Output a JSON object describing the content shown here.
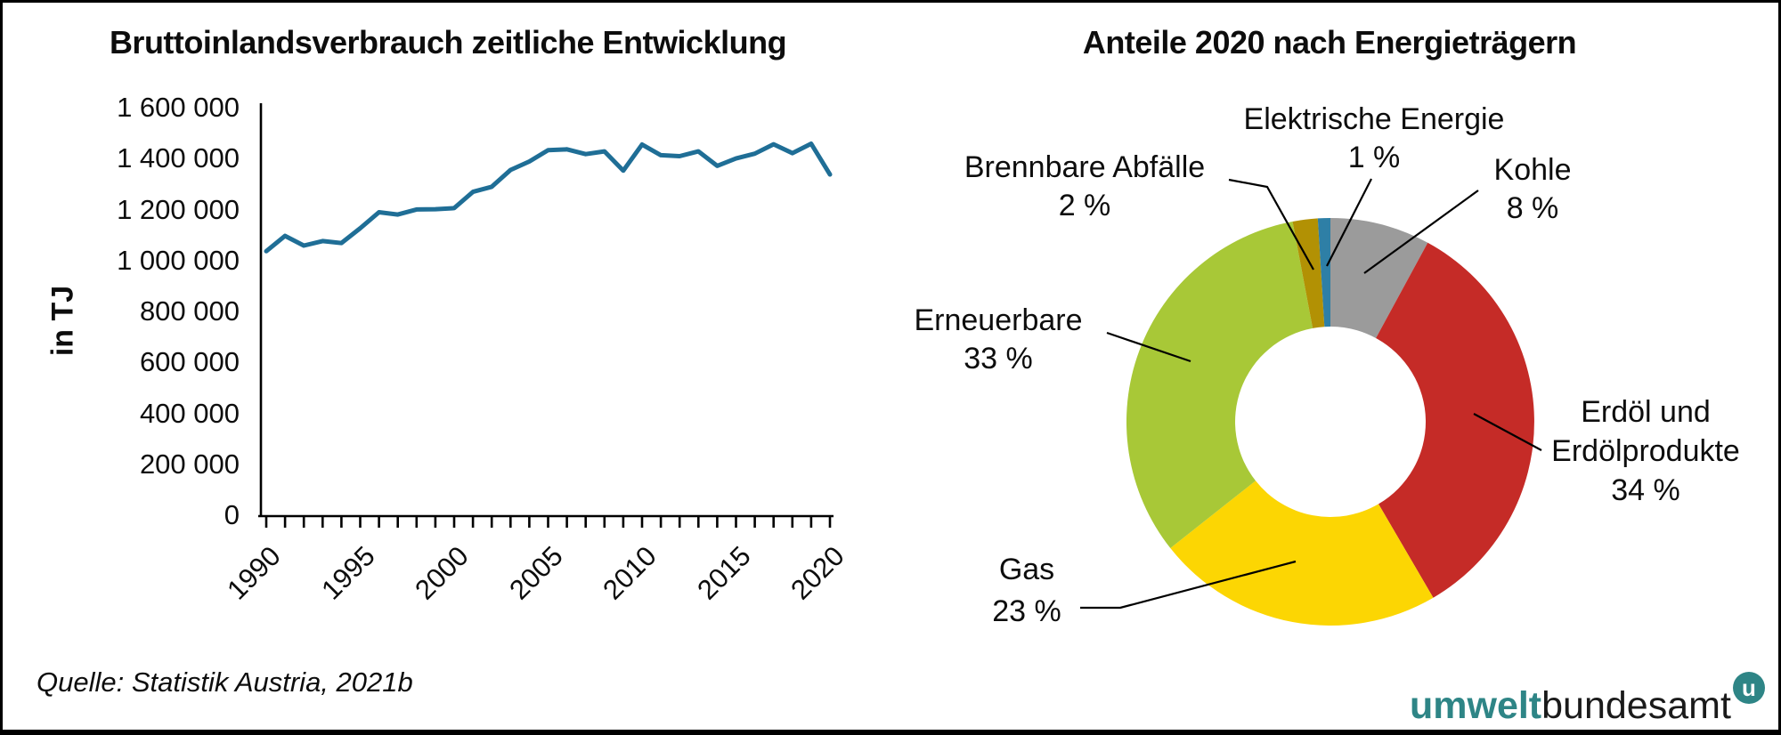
{
  "source": "Quelle: Statistik Austria, 2021b",
  "logo": {
    "part1": "umwelt",
    "part2": "bundesamt",
    "badge": "u",
    "teal": "#2E8586"
  },
  "chart_data": [
    {
      "type": "line",
      "title": "Bruttoinlandsverbrauch zeitliche Entwicklung",
      "xlabel": "",
      "ylabel": "in TJ",
      "ylim": [
        0,
        1600000
      ],
      "ytick_step": 200000,
      "xticks": [
        1990,
        1995,
        2000,
        2005,
        2010,
        2015,
        2020
      ],
      "line_color": "#1F6E96",
      "grid": false,
      "x": [
        1990,
        1991,
        1992,
        1993,
        1994,
        1995,
        1996,
        1997,
        1998,
        1999,
        2000,
        2001,
        2002,
        2003,
        2004,
        2005,
        2006,
        2007,
        2008,
        2009,
        2010,
        2011,
        2012,
        2013,
        2014,
        2015,
        2016,
        2017,
        2018,
        2019,
        2020
      ],
      "values": [
        1040000,
        1100000,
        1062000,
        1080000,
        1072000,
        1130000,
        1193000,
        1184000,
        1204000,
        1205000,
        1209000,
        1273000,
        1293000,
        1359000,
        1392000,
        1437000,
        1440000,
        1421000,
        1432000,
        1356000,
        1459000,
        1417000,
        1413000,
        1432000,
        1375000,
        1404000,
        1423000,
        1460000,
        1425000,
        1462000,
        1341000
      ]
    },
    {
      "type": "pie",
      "subtype": "donut",
      "title": "Anteile 2020 nach Energieträgern",
      "start": "top",
      "direction": "clockwise",
      "segments": [
        {
          "id": "kohle",
          "pct": 8,
          "pct_label": "8 %",
          "color": "#9B9B9B",
          "label_lines": [
            "Kohle"
          ]
        },
        {
          "id": "erdoel",
          "pct": 34,
          "pct_label": "34 %",
          "color": "#C52B27",
          "label_lines": [
            "Erdöl und",
            "Erdölprodukte"
          ]
        },
        {
          "id": "gas",
          "pct": 23,
          "pct_label": "23 %",
          "color": "#FCD603",
          "label_lines": [
            "Gas"
          ]
        },
        {
          "id": "erneuerbare",
          "pct": 33,
          "pct_label": "33 %",
          "color": "#A8C837",
          "label_lines": [
            "Erneuerbare"
          ]
        },
        {
          "id": "brennbare",
          "pct": 2,
          "pct_label": "2 %",
          "color": "#B29104",
          "label_lines": [
            "Brennbare Abfälle"
          ]
        },
        {
          "id": "elektrisch",
          "pct": 1,
          "pct_label": "1 %",
          "color": "#2E7FA6",
          "label_lines": [
            "Elektrische Energie"
          ]
        }
      ]
    }
  ]
}
